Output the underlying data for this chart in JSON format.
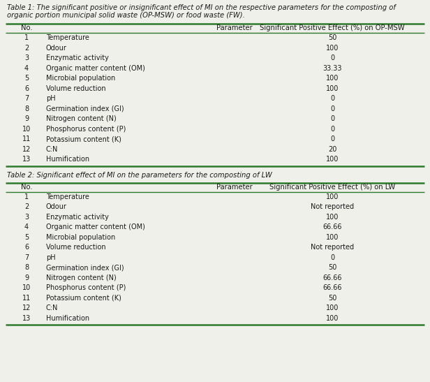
{
  "table1_title_line1": "Table 1: The significant positive or insignificant effect of MI on the respective parameters for the composting of",
  "table1_title_line2": "organic portion municipal solid waste (OP-MSW) or food waste (FW).",
  "table1_headers": [
    "No.",
    "Parameter",
    "Significant Positive Effect (%) on OP-MSW"
  ],
  "table1_rows": [
    [
      "1",
      "Temperature",
      "50"
    ],
    [
      "2",
      "Odour",
      "100"
    ],
    [
      "3",
      "Enzymatic activity",
      "0"
    ],
    [
      "4",
      "Organic matter content (OM)",
      "33.33"
    ],
    [
      "5",
      "Microbial population",
      "100"
    ],
    [
      "6",
      "Volume reduction",
      "100"
    ],
    [
      "7",
      "pH",
      "0"
    ],
    [
      "8",
      "Germination index (GI)",
      "0"
    ],
    [
      "9",
      "Nitrogen content (N)",
      "0"
    ],
    [
      "10",
      "Phosphorus content (P)",
      "0"
    ],
    [
      "11",
      "Potassium content (K)",
      "0"
    ],
    [
      "12",
      "C:N",
      "20"
    ],
    [
      "13",
      "Humification",
      "100"
    ]
  ],
  "table2_title": "Table 2: Significant effect of MI on the parameters for the composting of LW",
  "table2_headers": [
    "No.",
    "Parameter",
    "Significant Positive Effect (%) on LW"
  ],
  "table2_rows": [
    [
      "1",
      "Temperature",
      "100"
    ],
    [
      "2",
      "Odour",
      "Not reported"
    ],
    [
      "3",
      "Enzymatic activity",
      "100"
    ],
    [
      "4",
      "Organic matter content (OM)",
      "66.66"
    ],
    [
      "5",
      "Microbial population",
      "100"
    ],
    [
      "6",
      "Volume reduction",
      "Not reported"
    ],
    [
      "7",
      "pH",
      "0"
    ],
    [
      "8",
      "Germination index (GI)",
      "50"
    ],
    [
      "9",
      "Nitrogen content (N)",
      "66.66"
    ],
    [
      "10",
      "Phosphorus content (P)",
      "66.66"
    ],
    [
      "11",
      "Potassium content (K)",
      "50"
    ],
    [
      "12",
      "C:N",
      "100"
    ],
    [
      "13",
      "Humification",
      "100"
    ]
  ],
  "bg_color": "#f0f0eb",
  "border_color": "#2d7a2d",
  "text_color": "#1a1a1a",
  "font_size": 7.0,
  "header_font_size": 7.2,
  "title_font_size": 7.2,
  "col_splits": [
    0.055,
    0.46,
    0.485
  ]
}
